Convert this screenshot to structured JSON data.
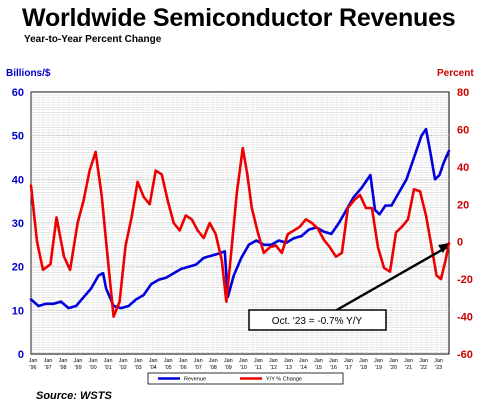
{
  "chart_data": {
    "type": "line",
    "title": "Worldwide Semiconductor Revenues",
    "subtitle": "Year-to-Year Percent Change",
    "left_axis_label": "Billions/$",
    "right_axis_label": "Percent",
    "left_ylim": [
      0,
      60
    ],
    "left_ticks": [
      0,
      10,
      20,
      30,
      40,
      50,
      60
    ],
    "right_ylim": [
      -60,
      80
    ],
    "right_ticks": [
      -60,
      -40,
      -20,
      0,
      20,
      40,
      60,
      80
    ],
    "x_range": [
      1996.0,
      2023.83
    ],
    "x_ticks": [
      {
        "month": "Jan",
        "year": "'96"
      },
      {
        "month": "Jan",
        "year": "'97"
      },
      {
        "month": "Jan",
        "year": "'98"
      },
      {
        "month": "Jan",
        "year": "'99"
      },
      {
        "month": "Jan",
        "year": "'00"
      },
      {
        "month": "Jan",
        "year": "'01"
      },
      {
        "month": "Jan",
        "year": "'02"
      },
      {
        "month": "Jan",
        "year": "'03"
      },
      {
        "month": "Jan",
        "year": "'04"
      },
      {
        "month": "Jan",
        "year": "'05"
      },
      {
        "month": "Jan",
        "year": "'06"
      },
      {
        "month": "Jan",
        "year": "'07"
      },
      {
        "month": "Jan",
        "year": "'08"
      },
      {
        "month": "Jan",
        "year": "'09"
      },
      {
        "month": "Jan",
        "year": "'10"
      },
      {
        "month": "Jan",
        "year": "'11"
      },
      {
        "month": "Jan",
        "year": "'12"
      },
      {
        "month": "Jan",
        "year": "'13"
      },
      {
        "month": "Jan",
        "year": "'14"
      },
      {
        "month": "Jan",
        "year": "'15"
      },
      {
        "month": "Jan",
        "year": "'16"
      },
      {
        "month": "Jan",
        "year": "'17"
      },
      {
        "month": "Jan",
        "year": "'18"
      },
      {
        "month": "Jan",
        "year": "'19"
      },
      {
        "month": "Jan",
        "year": "'20"
      },
      {
        "month": "Jan",
        "year": "'21"
      },
      {
        "month": "Jan",
        "year": "'22"
      },
      {
        "month": "Jan",
        "year": "'23"
      }
    ],
    "grid": true,
    "legend_position": "bottom",
    "series": [
      {
        "name": "Revenue",
        "axis": "left",
        "color": "#0000dd",
        "x": [
          1996.0,
          1996.5,
          1997.0,
          1997.5,
          1998.0,
          1998.5,
          1999.0,
          1999.5,
          2000.0,
          2000.5,
          2000.8,
          2001.0,
          2001.5,
          2002.0,
          2002.5,
          2003.0,
          2003.5,
          2004.0,
          2004.5,
          2005.0,
          2005.5,
          2006.0,
          2006.5,
          2007.0,
          2007.5,
          2008.0,
          2008.5,
          2008.9,
          2009.1,
          2009.5,
          2010.0,
          2010.5,
          2011.0,
          2011.5,
          2012.0,
          2012.5,
          2013.0,
          2013.5,
          2014.0,
          2014.5,
          2015.0,
          2015.5,
          2016.0,
          2016.5,
          2017.0,
          2017.5,
          2018.0,
          2018.6,
          2018.9,
          2019.2,
          2019.6,
          2020.0,
          2020.5,
          2021.0,
          2021.5,
          2022.0,
          2022.3,
          2022.6,
          2022.9,
          2023.2,
          2023.5,
          2023.83
        ],
        "y": [
          12.5,
          11,
          11.5,
          11.5,
          12,
          10.5,
          11,
          13,
          15,
          18,
          18.5,
          15,
          11,
          10.5,
          11,
          12.5,
          13.5,
          16,
          17,
          17.5,
          18.5,
          19.5,
          20,
          20.5,
          22,
          22.5,
          23,
          23.5,
          13,
          18,
          22,
          25,
          26,
          25,
          25,
          26,
          25.5,
          26.5,
          27,
          28.5,
          29,
          28,
          27.5,
          30,
          33,
          36,
          38,
          41,
          33,
          32,
          34,
          34,
          37,
          40,
          45,
          50,
          51.5,
          46,
          40,
          41,
          44,
          46.5
        ]
      },
      {
        "name": "Y/Y % Change",
        "axis": "right",
        "color": "#ee0000",
        "x": [
          1996.0,
          1996.4,
          1996.8,
          1997.3,
          1997.7,
          1998.2,
          1998.6,
          1999.1,
          1999.5,
          1999.9,
          2000.3,
          2000.7,
          2001.1,
          2001.5,
          2001.9,
          2002.3,
          2002.7,
          2003.1,
          2003.5,
          2003.9,
          2004.3,
          2004.7,
          2005.1,
          2005.5,
          2005.9,
          2006.3,
          2006.7,
          2007.1,
          2007.5,
          2007.9,
          2008.3,
          2008.7,
          2009.0,
          2009.3,
          2009.7,
          2010.1,
          2010.4,
          2010.7,
          2011.1,
          2011.5,
          2011.9,
          2012.3,
          2012.7,
          2013.1,
          2013.5,
          2013.9,
          2014.3,
          2014.7,
          2015.1,
          2015.5,
          2015.9,
          2016.3,
          2016.7,
          2017.1,
          2017.5,
          2017.9,
          2018.3,
          2018.7,
          2019.1,
          2019.5,
          2019.9,
          2020.3,
          2020.7,
          2021.1,
          2021.5,
          2021.9,
          2022.3,
          2022.7,
          2023.0,
          2023.3,
          2023.6,
          2023.83
        ],
        "y": [
          30,
          0,
          -15,
          -12,
          13,
          -8,
          -15,
          10,
          22,
          38,
          48,
          25,
          -8,
          -40,
          -32,
          -2,
          13,
          32,
          24,
          20,
          38,
          36,
          22,
          10,
          6,
          14,
          12,
          6,
          2,
          10,
          4,
          -10,
          -32,
          -8,
          26,
          50,
          36,
          18,
          5,
          -6,
          -3,
          -2,
          -6,
          4,
          6,
          8,
          12,
          10,
          7,
          1,
          -3,
          -8,
          -6,
          18,
          22,
          25,
          18,
          18,
          -3,
          -14,
          -16,
          5,
          8,
          12,
          28,
          27,
          14,
          -4,
          -18,
          -20,
          -10,
          -0.7
        ]
      }
    ],
    "annotation": "Oct. '23 = -0.7% Y/Y",
    "source": "Source: WSTS"
  }
}
